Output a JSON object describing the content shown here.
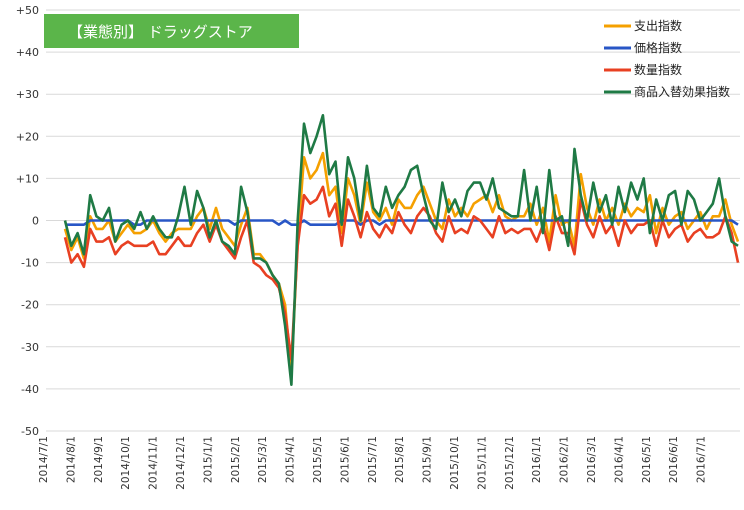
{
  "chart_data": {
    "type": "line",
    "title": "【業態別】 ドラッグストア",
    "ylim": [
      -50,
      50
    ],
    "yticks": [
      "+50",
      "+40",
      "+30",
      "+20",
      "+10",
      "0",
      "-10",
      "-20",
      "-30",
      "-40",
      "-50"
    ],
    "xticks": [
      "2014/7/1",
      "2014/8/1",
      "2014/9/1",
      "2014/10/1",
      "2014/11/1",
      "2014/12/1",
      "2015/1/1",
      "2015/2/1",
      "2015/3/1",
      "2015/4/1",
      "2015/5/1",
      "2015/6/1",
      "2015/7/1",
      "2015/8/1",
      "2015/9/1",
      "2015/10/1",
      "2015/11/1",
      "2015/12/1",
      "2016/1/1",
      "2016/2/1",
      "2016/3/1",
      "2016/4/1",
      "2016/5/1",
      "2016/6/1",
      "2016/7/1"
    ],
    "grid": true,
    "legend_position": "top-right",
    "series": [
      {
        "name": "支出指数",
        "color": "#f5a000",
        "values": [
          -2,
          -7,
          -4,
          -9,
          1,
          -2,
          -2,
          0,
          -5,
          -3,
          -1,
          -3,
          -3,
          -2,
          0,
          -3,
          -5,
          -3,
          -2,
          -2,
          -2,
          1,
          3,
          -2,
          3,
          -2,
          -4,
          -6,
          -1,
          3,
          -8,
          -8,
          -10,
          -13,
          -15,
          -20,
          -36,
          -5,
          15,
          10,
          12,
          16,
          6,
          8,
          -3,
          10,
          6,
          -1,
          9,
          2,
          0,
          3,
          -1,
          5,
          3,
          3,
          6,
          8,
          4,
          0,
          -2,
          5,
          1,
          3,
          1,
          4,
          5,
          6,
          2,
          6,
          1,
          0,
          1,
          1,
          4,
          -1,
          3,
          -5,
          6,
          -1,
          0,
          -6,
          11,
          3,
          -1,
          5,
          0,
          3,
          -1,
          4,
          1,
          3,
          2,
          6,
          -3,
          3,
          -1,
          1,
          2,
          -2,
          0,
          2,
          -2,
          1,
          1,
          5,
          -1,
          -5
        ]
      },
      {
        "name": "価格指数",
        "color": "#2856c6",
        "values": [
          -1,
          -1,
          -1,
          -1,
          0,
          0,
          0,
          0,
          0,
          0,
          0,
          -1,
          -1,
          0,
          0,
          0,
          0,
          0,
          0,
          0,
          0,
          0,
          0,
          0,
          0,
          0,
          0,
          -1,
          0,
          0,
          0,
          0,
          0,
          0,
          -1,
          0,
          -1,
          -1,
          0,
          -1,
          -1,
          -1,
          -1,
          -1,
          0,
          0,
          0,
          -1,
          0,
          0,
          -1,
          0,
          0,
          0,
          0,
          0,
          0,
          0,
          0,
          0,
          0,
          0,
          0,
          0,
          0,
          0,
          0,
          0,
          0,
          0,
          0,
          0,
          0,
          0,
          0,
          0,
          0,
          0,
          0,
          0,
          0,
          0,
          0,
          0,
          0,
          0,
          0,
          0,
          0,
          0,
          0,
          0,
          0,
          0,
          0,
          0,
          0,
          0,
          0,
          0,
          0,
          0,
          0,
          0,
          0,
          0,
          0,
          -1
        ]
      },
      {
        "name": "数量指数",
        "color": "#e84022",
        "values": [
          -4,
          -10,
          -8,
          -11,
          -2,
          -5,
          -5,
          -4,
          -8,
          -6,
          -5,
          -6,
          -6,
          -6,
          -5,
          -8,
          -8,
          -6,
          -4,
          -6,
          -6,
          -3,
          -1,
          -5,
          -1,
          -5,
          -7,
          -9,
          -4,
          0,
          -10,
          -11,
          -13,
          -14,
          -16,
          -22,
          -33,
          -6,
          6,
          4,
          5,
          8,
          1,
          4,
          -6,
          5,
          1,
          -4,
          2,
          -2,
          -4,
          -1,
          -3,
          2,
          -1,
          -3,
          1,
          3,
          1,
          -3,
          -5,
          1,
          -3,
          -2,
          -3,
          1,
          0,
          -2,
          -4,
          1,
          -3,
          -2,
          -3,
          -2,
          -2,
          -5,
          -1,
          -7,
          1,
          -3,
          -3,
          -8,
          5,
          -1,
          -4,
          1,
          -3,
          -1,
          -6,
          0,
          -3,
          -1,
          -1,
          0,
          -6,
          0,
          -4,
          -2,
          -1,
          -5,
          -3,
          -2,
          -4,
          -4,
          -3,
          1,
          -3,
          -10
        ]
      },
      {
        "name": "商品入替効果指数",
        "color": "#1f7a45",
        "values": [
          0,
          -6,
          -3,
          -8,
          6,
          1,
          0,
          3,
          -5,
          -1,
          0,
          -2,
          2,
          -2,
          1,
          -2,
          -4,
          -4,
          1,
          8,
          -1,
          7,
          3,
          -4,
          0,
          -5,
          -6,
          -8,
          8,
          2,
          -9,
          -9,
          -10,
          -13,
          -15,
          -25,
          -39,
          0,
          23,
          16,
          20,
          25,
          11,
          14,
          -1,
          15,
          10,
          0,
          13,
          3,
          1,
          8,
          3,
          6,
          8,
          12,
          13,
          6,
          0,
          -2,
          9,
          2,
          5,
          1,
          7,
          9,
          9,
          5,
          10,
          3,
          2,
          1,
          1,
          12,
          0,
          8,
          -3,
          12,
          0,
          1,
          -6,
          17,
          6,
          0,
          9,
          2,
          6,
          -1,
          8,
          2,
          9,
          5,
          10,
          -3,
          5,
          0,
          6,
          7,
          -1,
          7,
          5,
          0,
          2,
          4,
          10,
          1,
          -5,
          -6
        ]
      }
    ]
  }
}
